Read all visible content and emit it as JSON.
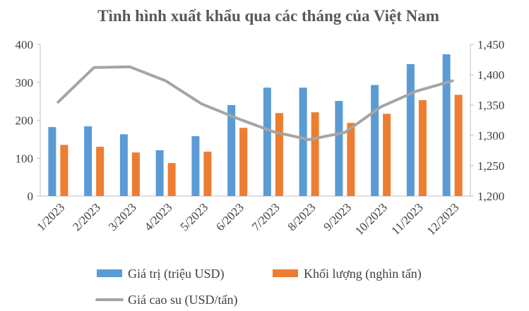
{
  "chart_data": {
    "type": "bar",
    "title": "Tình hình xuất khẩu qua các tháng của Việt Nam",
    "categories": [
      "1/2023",
      "2/2023",
      "3/2023",
      "4/2023",
      "5/2023",
      "6/2023",
      "7/2023",
      "8/2023",
      "9/2023",
      "10/2023",
      "11/2023",
      "12/2023"
    ],
    "series": [
      {
        "name": "Giá trị (triệu USD)",
        "type": "bar",
        "axis": "left",
        "color": "#5b9bd5",
        "values": [
          182,
          184,
          163,
          121,
          158,
          240,
          286,
          286,
          251,
          293,
          348,
          374
        ]
      },
      {
        "name": "Khối lượng (nghìn tấn)",
        "type": "bar",
        "axis": "left",
        "color": "#ed7d31",
        "values": [
          135,
          130,
          115,
          87,
          117,
          180,
          219,
          221,
          193,
          217,
          253,
          267
        ]
      },
      {
        "name": "Giá cao su (USD/tấn)",
        "type": "line",
        "axis": "right",
        "color": "#a5a5a5",
        "values": [
          1355,
          1412,
          1413,
          1390,
          1352,
          1328,
          1306,
          1293,
          1305,
          1347,
          1373,
          1390
        ]
      }
    ],
    "y_left": {
      "min": 0,
      "max": 400,
      "ticks": [
        "0",
        "100",
        "200",
        "300",
        "400"
      ]
    },
    "y_right": {
      "min": 1200,
      "max": 1450,
      "ticks": [
        "1,200",
        "1,250",
        "1,300",
        "1,350",
        "1,400",
        "1,450"
      ]
    },
    "grid": false,
    "legend_position": "bottom"
  }
}
